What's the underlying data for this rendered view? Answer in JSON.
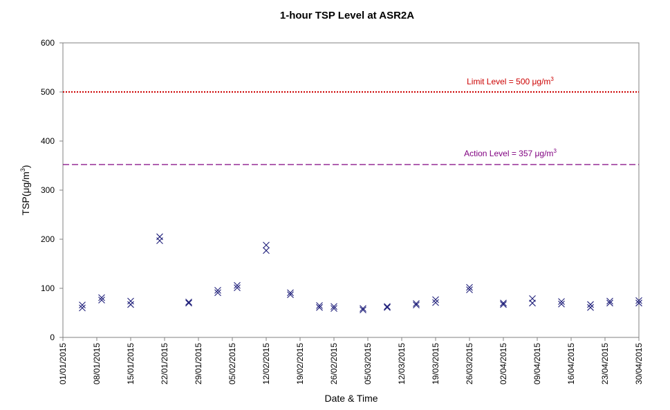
{
  "chart_data": {
    "type": "scatter",
    "title": "1-hour TSP Level at ASR2A",
    "xlabel": "Date & Time",
    "ylabel": "TSP(μg/m3)",
    "ylabel_main": "TSP(μg/m",
    "ylabel_sup": "3",
    "ylabel_end": ")",
    "ylim": [
      0,
      600
    ],
    "yticks": [
      0,
      100,
      200,
      300,
      400,
      500,
      600
    ],
    "xlim": [
      "2015-01-01",
      "2015-04-30"
    ],
    "xticks": [
      "01/01/2015",
      "08/01/2015",
      "15/01/2015",
      "22/01/2015",
      "29/01/2015",
      "05/02/2015",
      "12/02/2015",
      "19/02/2015",
      "26/02/2015",
      "05/03/2015",
      "12/03/2015",
      "19/03/2015",
      "26/03/2015",
      "02/04/2015",
      "09/04/2015",
      "16/04/2015",
      "23/04/2015",
      "30/04/2015"
    ],
    "grid": false,
    "legend": "none",
    "marker": "x",
    "marker_color": "#1f1f7a",
    "reference_lines": [
      {
        "label_main": "Limit Level  = 500 μg/m",
        "label_sup": "3",
        "value": 500,
        "color": "#cc0000",
        "style": "dotted"
      },
      {
        "label_main": "Action Level  = 357 μg/m",
        "label_sup": "3",
        "value": 357,
        "color": "#800080",
        "style": "dashed"
      }
    ],
    "points": [
      {
        "x": "2015-01-05",
        "y": 66
      },
      {
        "x": "2015-01-05",
        "y": 60
      },
      {
        "x": "2015-01-09",
        "y": 81
      },
      {
        "x": "2015-01-09",
        "y": 76
      },
      {
        "x": "2015-01-15",
        "y": 74
      },
      {
        "x": "2015-01-15",
        "y": 67
      },
      {
        "x": "2015-01-21",
        "y": 205
      },
      {
        "x": "2015-01-21",
        "y": 197
      },
      {
        "x": "2015-01-27",
        "y": 72
      },
      {
        "x": "2015-01-27",
        "y": 70
      },
      {
        "x": "2015-02-02",
        "y": 96
      },
      {
        "x": "2015-02-02",
        "y": 91
      },
      {
        "x": "2015-02-06",
        "y": 106
      },
      {
        "x": "2015-02-06",
        "y": 101
      },
      {
        "x": "2015-02-12",
        "y": 188
      },
      {
        "x": "2015-02-12",
        "y": 177
      },
      {
        "x": "2015-02-17",
        "y": 91
      },
      {
        "x": "2015-02-17",
        "y": 87
      },
      {
        "x": "2015-02-23",
        "y": 65
      },
      {
        "x": "2015-02-23",
        "y": 61
      },
      {
        "x": "2015-02-26",
        "y": 63
      },
      {
        "x": "2015-02-26",
        "y": 59
      },
      {
        "x": "2015-03-04",
        "y": 59
      },
      {
        "x": "2015-03-04",
        "y": 56
      },
      {
        "x": "2015-03-09",
        "y": 63
      },
      {
        "x": "2015-03-09",
        "y": 61
      },
      {
        "x": "2015-03-15",
        "y": 69
      },
      {
        "x": "2015-03-15",
        "y": 66
      },
      {
        "x": "2015-03-19",
        "y": 77
      },
      {
        "x": "2015-03-19",
        "y": 71
      },
      {
        "x": "2015-03-26",
        "y": 102
      },
      {
        "x": "2015-03-26",
        "y": 97
      },
      {
        "x": "2015-04-02",
        "y": 70
      },
      {
        "x": "2015-04-02",
        "y": 67
      },
      {
        "x": "2015-04-08",
        "y": 79
      },
      {
        "x": "2015-04-08",
        "y": 70
      },
      {
        "x": "2015-04-14",
        "y": 73
      },
      {
        "x": "2015-04-14",
        "y": 68
      },
      {
        "x": "2015-04-20",
        "y": 67
      },
      {
        "x": "2015-04-20",
        "y": 61
      },
      {
        "x": "2015-04-24",
        "y": 74
      },
      {
        "x": "2015-04-24",
        "y": 70
      },
      {
        "x": "2015-04-30",
        "y": 75
      },
      {
        "x": "2015-04-30",
        "y": 70
      }
    ]
  }
}
